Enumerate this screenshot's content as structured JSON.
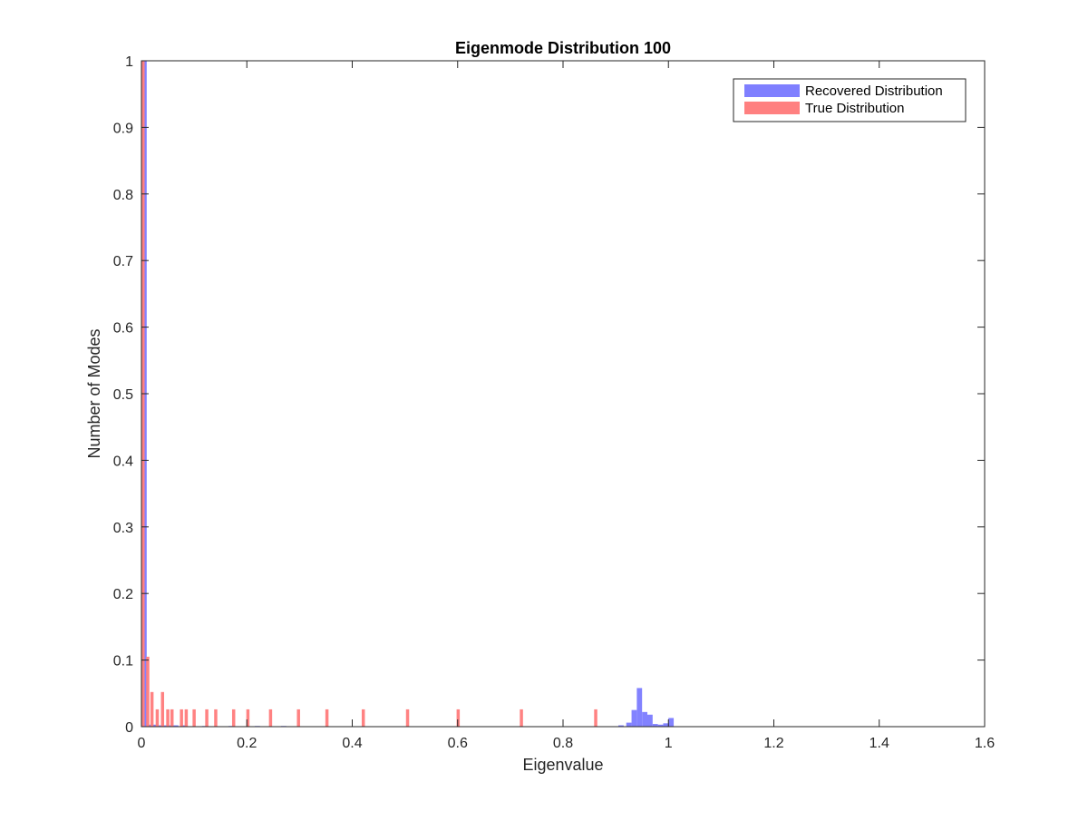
{
  "chart_data": {
    "type": "bar",
    "title": "Eigenmode Distribution 100",
    "xlabel": "Eigenvalue",
    "ylabel": "Number of Modes",
    "xlim": [
      0,
      1.6
    ],
    "ylim": [
      0,
      1
    ],
    "xticks": [
      "0",
      "0.2",
      "0.4",
      "0.6",
      "0.8",
      "1",
      "1.2",
      "1.4",
      "1.6"
    ],
    "yticks": [
      "0",
      "0.1",
      "0.2",
      "0.3",
      "0.4",
      "0.5",
      "0.6",
      "0.7",
      "0.8",
      "0.9",
      "1"
    ],
    "grid": false,
    "legend_position": "top-right",
    "series": [
      {
        "name": "Recovered Distribution",
        "color": "#7f7fff",
        "bin_width": 0.01,
        "x": [
          0.005,
          0.015,
          0.025,
          0.035,
          0.045,
          0.055,
          0.065,
          0.08,
          0.12,
          0.17,
          0.22,
          0.27,
          0.91,
          0.925,
          0.935,
          0.945,
          0.955,
          0.965,
          0.975,
          0.985,
          0.995,
          1.005
        ],
        "values": [
          1.0,
          0.003,
          0.003,
          0.002,
          0.002,
          0.002,
          0.002,
          0.002,
          0.001,
          0.001,
          0.001,
          0.001,
          0.002,
          0.006,
          0.025,
          0.058,
          0.022,
          0.018,
          0.004,
          0.003,
          0.005,
          0.013
        ]
      },
      {
        "name": "True Distribution",
        "color": "#ff8080",
        "bin_width": 0.006,
        "x": [
          0.003,
          0.012,
          0.02,
          0.03,
          0.04,
          0.05,
          0.058,
          0.076,
          0.085,
          0.1,
          0.124,
          0.141,
          0.175,
          0.202,
          0.245,
          0.298,
          0.352,
          0.421,
          0.505,
          0.601,
          0.721,
          0.862
        ],
        "values": [
          1.0,
          0.105,
          0.052,
          0.026,
          0.052,
          0.026,
          0.026,
          0.026,
          0.026,
          0.026,
          0.026,
          0.026,
          0.026,
          0.026,
          0.026,
          0.026,
          0.026,
          0.026,
          0.026,
          0.026,
          0.026,
          0.026
        ]
      }
    ]
  }
}
